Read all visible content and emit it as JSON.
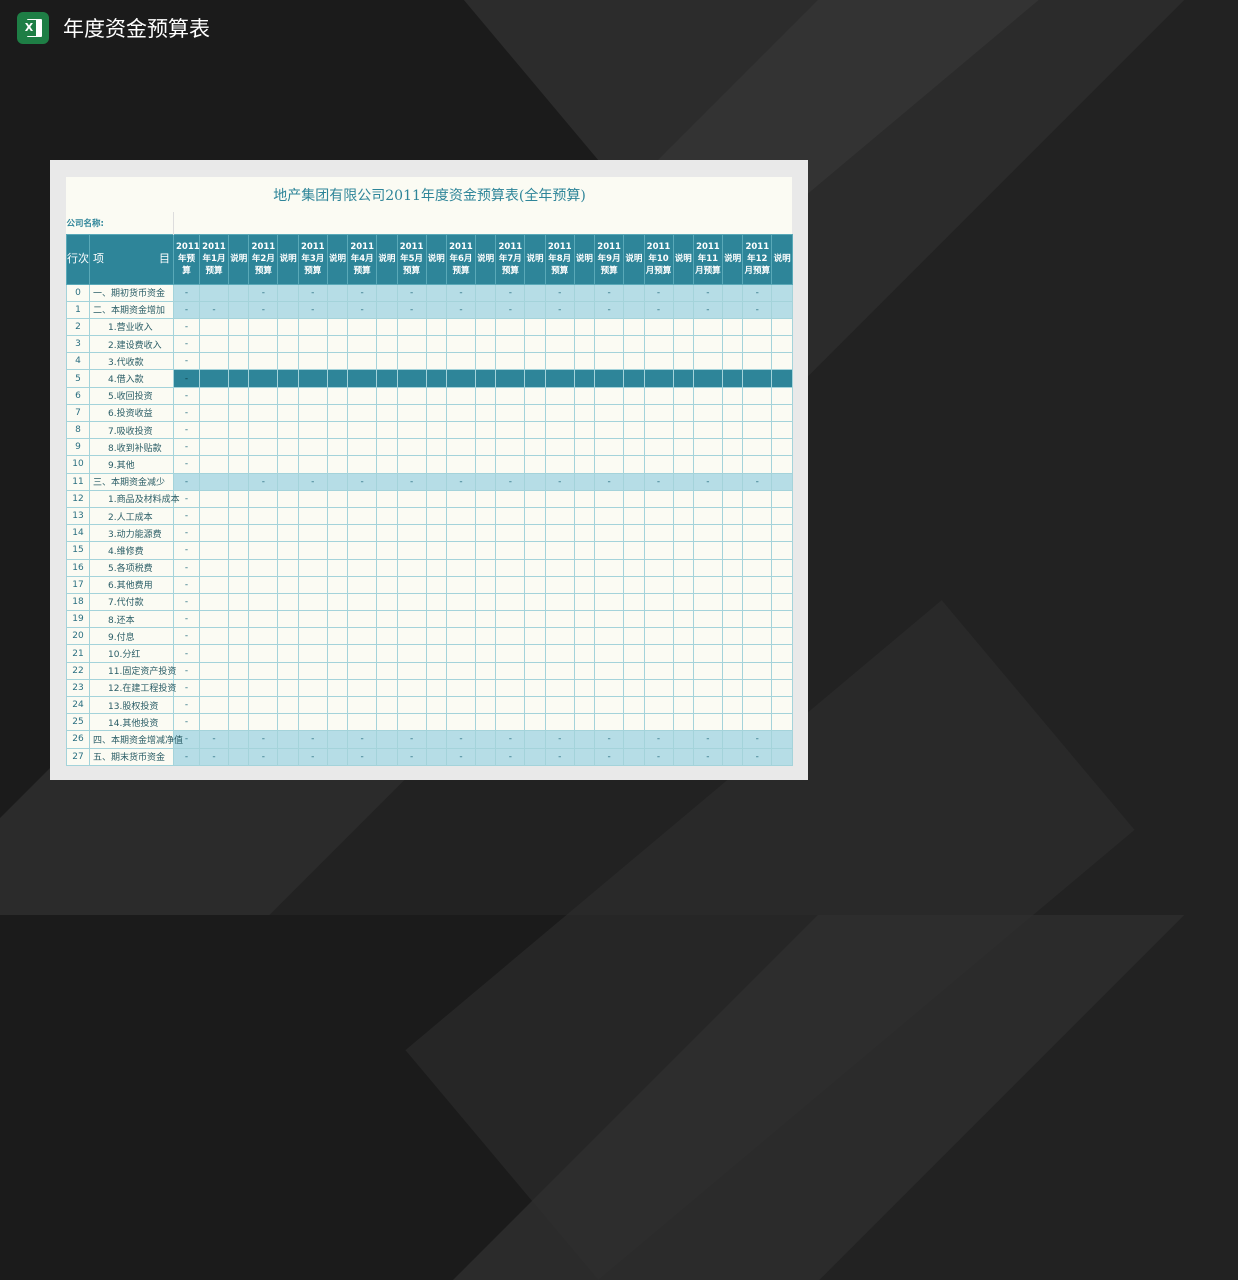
{
  "app": {
    "title": "年度资金预算表",
    "icon": "excel-icon"
  },
  "sheet": {
    "title": "地产集团有限公司2011年度资金预算表(全年预算)",
    "company_label": "公司名称:",
    "headers": {
      "row_no": "行次",
      "item_left": "项",
      "item_right": "目",
      "annual": "2011年预算",
      "months": [
        "2011年1月预算",
        "2011年2月预算",
        "2011年3月预算",
        "2011年4月预算",
        "2011年5月预算",
        "2011年6月预算",
        "2011年7月预算",
        "2011年8月预算",
        "2011年9月预算",
        "2011年10月预算",
        "2011年11月预算",
        "2011年12月预算"
      ],
      "note": "说明"
    },
    "rows": [
      {
        "no": "0",
        "label": "一、期初货币资金",
        "type": "section",
        "annual": "-",
        "months": [
          "",
          "-",
          "-",
          "-",
          "-",
          "-",
          "-",
          "-",
          "-",
          "-",
          "-",
          "-"
        ]
      },
      {
        "no": "1",
        "label": "二、本期资金增加",
        "type": "section",
        "annual": "-",
        "months": [
          "-",
          "-",
          "-",
          "-",
          "-",
          "-",
          "-",
          "-",
          "-",
          "-",
          "-",
          "-"
        ]
      },
      {
        "no": "2",
        "label": "1.营业收入",
        "type": "item",
        "annual": "-"
      },
      {
        "no": "3",
        "label": "2.建设费收入",
        "type": "item",
        "annual": "-"
      },
      {
        "no": "4",
        "label": "3.代收款",
        "type": "item",
        "annual": "-"
      },
      {
        "no": "5",
        "label": "4.借入款",
        "type": "selected",
        "annual": "-"
      },
      {
        "no": "6",
        "label": "5.收回投资",
        "type": "item",
        "annual": "-"
      },
      {
        "no": "7",
        "label": "6.投资收益",
        "type": "item",
        "annual": "-"
      },
      {
        "no": "8",
        "label": "7.吸收投资",
        "type": "item",
        "annual": "-"
      },
      {
        "no": "9",
        "label": "8.收到补贴款",
        "type": "item",
        "annual": "-"
      },
      {
        "no": "10",
        "label": "9.其他",
        "type": "item",
        "annual": "-"
      },
      {
        "no": "11",
        "label": "三、本期资金减少",
        "type": "section",
        "annual": "-",
        "months": [
          "",
          "-",
          "-",
          "-",
          "-",
          "-",
          "-",
          "-",
          "-",
          "-",
          "-",
          "-"
        ]
      },
      {
        "no": "12",
        "label": "1.商品及材料成本",
        "type": "item",
        "annual": "-"
      },
      {
        "no": "13",
        "label": "2.人工成本",
        "type": "item",
        "annual": "-"
      },
      {
        "no": "14",
        "label": "3.动力能源费",
        "type": "item",
        "annual": "-"
      },
      {
        "no": "15",
        "label": "4.维修费",
        "type": "item",
        "annual": "-"
      },
      {
        "no": "16",
        "label": "5.各项税费",
        "type": "item",
        "annual": "-"
      },
      {
        "no": "17",
        "label": "6.其他费用",
        "type": "item",
        "annual": "-"
      },
      {
        "no": "18",
        "label": "7.代付款",
        "type": "item",
        "annual": "-"
      },
      {
        "no": "19",
        "label": "8.还本",
        "type": "item",
        "annual": "-"
      },
      {
        "no": "20",
        "label": "9.付息",
        "type": "item",
        "annual": "-"
      },
      {
        "no": "21",
        "label": "10.分红",
        "type": "item",
        "annual": "-"
      },
      {
        "no": "22",
        "label": "11.固定资产投资",
        "type": "item",
        "annual": "-"
      },
      {
        "no": "23",
        "label": "12.在建工程投资",
        "type": "item",
        "annual": "-"
      },
      {
        "no": "24",
        "label": "13.股权投资",
        "type": "item",
        "annual": "-"
      },
      {
        "no": "25",
        "label": "14.其他投资",
        "type": "item",
        "annual": "-"
      },
      {
        "no": "26",
        "label": "四、本期资金增减净值",
        "type": "section",
        "annual": "-",
        "months": [
          "-",
          "-",
          "-",
          "-",
          "-",
          "-",
          "-",
          "-",
          "-",
          "-",
          "-",
          "-"
        ]
      },
      {
        "no": "27",
        "label": "五、期末货币资金",
        "type": "section",
        "annual": "-",
        "months": [
          "-",
          "-",
          "-",
          "-",
          "-",
          "-",
          "-",
          "-",
          "-",
          "-",
          "-",
          "-"
        ]
      }
    ]
  },
  "colors": {
    "header": "#2e8599",
    "section": "#b6dde6",
    "grid": "#a4d3da",
    "sheet_bg": "#fbfbf3"
  }
}
